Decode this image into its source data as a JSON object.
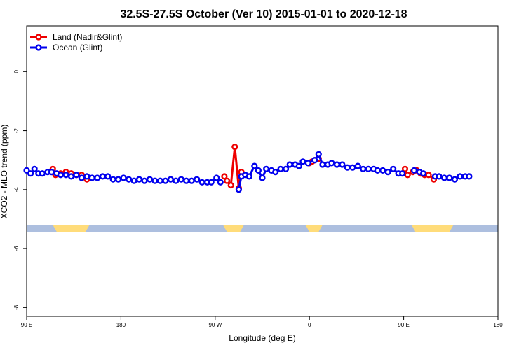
{
  "chart_data": {
    "type": "line",
    "title": "32.5S-27.5S October (Ver 10)   2015-01-01 to 2020-12-18",
    "xlabel": "Longitude (deg E)",
    "ylabel": "XCO2 - MLO trend (ppm)",
    "xlim": [
      90,
      450
    ],
    "ylim": [
      -8.3,
      1.55
    ],
    "x_ticks": [
      {
        "value": 90,
        "label": "90 E"
      },
      {
        "value": 162,
        "label": "180"
      },
      {
        "value": 234,
        "label": "90 W"
      },
      {
        "value": 306,
        "label": "0"
      },
      {
        "value": 378,
        "label": "90 E"
      },
      {
        "value": 450,
        "label": "180"
      }
    ],
    "y_ticks": [
      {
        "value": 0,
        "label": "0"
      },
      {
        "value": -2,
        "label": "-2"
      },
      {
        "value": -4,
        "label": "-4"
      },
      {
        "value": -6,
        "label": "-6"
      },
      {
        "value": -8,
        "label": "-8"
      }
    ],
    "legend": {
      "position": "top-left",
      "entries": [
        {
          "name": "Land (Nadir&Glint)",
          "color": "#ee0000"
        },
        {
          "name": "Ocean (Glint)",
          "color": "#0000ee"
        }
      ]
    },
    "series": [
      {
        "name": "Land (Nadir&Glint)",
        "color": "#ee0000",
        "segments": [
          [
            [
              110,
              -3.3
            ],
            [
              112,
              -3.5
            ],
            [
              116,
              -3.45
            ],
            [
              120,
              -3.4
            ],
            [
              124,
              -3.45
            ],
            [
              128,
              -3.5
            ],
            [
              132,
              -3.5
            ],
            [
              136,
              -3.65
            ]
          ],
          [
            [
              241,
              -3.55
            ],
            [
              243,
              -3.7
            ],
            [
              246,
              -3.85
            ],
            [
              249,
              -2.55
            ],
            [
              252,
              -3.95
            ],
            [
              254,
              -3.4
            ]
          ],
          [
            [
              306,
              -3.1
            ],
            [
              308,
              -3.05
            ],
            [
              310,
              -3.0
            ],
            [
              313,
              -2.95
            ]
          ],
          [
            [
              379,
              -3.3
            ],
            [
              381,
              -3.5
            ],
            [
              385,
              -3.4
            ],
            [
              388,
              -3.35
            ],
            [
              391,
              -3.45
            ],
            [
              394,
              -3.5
            ],
            [
              397,
              -3.5
            ],
            [
              401,
              -3.65
            ]
          ]
        ]
      },
      {
        "name": "Ocean (Glint)",
        "color": "#0000ee",
        "segments": [
          [
            [
              90,
              -3.35
            ],
            [
              93,
              -3.45
            ],
            [
              96,
              -3.3
            ],
            [
              99,
              -3.45
            ],
            [
              102,
              -3.45
            ],
            [
              106,
              -3.4
            ],
            [
              109,
              -3.4
            ],
            [
              113,
              -3.45
            ],
            [
              116,
              -3.5
            ],
            [
              120,
              -3.5
            ],
            [
              124,
              -3.55
            ],
            [
              128,
              -3.5
            ],
            [
              132,
              -3.6
            ],
            [
              136,
              -3.55
            ],
            [
              140,
              -3.6
            ],
            [
              144,
              -3.6
            ],
            [
              148,
              -3.55
            ],
            [
              152,
              -3.55
            ],
            [
              156,
              -3.65
            ],
            [
              160,
              -3.65
            ],
            [
              164,
              -3.6
            ],
            [
              168,
              -3.65
            ],
            [
              172,
              -3.7
            ],
            [
              176,
              -3.65
            ],
            [
              180,
              -3.7
            ],
            [
              184,
              -3.65
            ],
            [
              188,
              -3.7
            ],
            [
              192,
              -3.7
            ],
            [
              196,
              -3.7
            ],
            [
              200,
              -3.65
            ],
            [
              204,
              -3.7
            ],
            [
              208,
              -3.65
            ],
            [
              212,
              -3.7
            ],
            [
              216,
              -3.7
            ],
            [
              220,
              -3.65
            ],
            [
              224,
              -3.75
            ],
            [
              228,
              -3.75
            ],
            [
              231,
              -3.75
            ],
            [
              235,
              -3.6
            ],
            [
              238,
              -3.75
            ]
          ],
          [
            [
              252,
              -4.0
            ],
            [
              254,
              -3.55
            ],
            [
              257,
              -3.5
            ],
            [
              260,
              -3.55
            ],
            [
              264,
              -3.2
            ],
            [
              267,
              -3.35
            ],
            [
              270,
              -3.6
            ],
            [
              273,
              -3.3
            ],
            [
              277,
              -3.35
            ],
            [
              280,
              -3.4
            ],
            [
              284,
              -3.3
            ],
            [
              288,
              -3.3
            ],
            [
              291,
              -3.15
            ],
            [
              295,
              -3.15
            ],
            [
              298,
              -3.2
            ],
            [
              301,
              -3.05
            ],
            [
              305,
              -3.1
            ],
            [
              310,
              -3.0
            ],
            [
              313,
              -2.8
            ],
            [
              316,
              -3.15
            ],
            [
              320,
              -3.15
            ],
            [
              323,
              -3.1
            ],
            [
              327,
              -3.15
            ],
            [
              331,
              -3.15
            ],
            [
              335,
              -3.25
            ],
            [
              339,
              -3.25
            ],
            [
              343,
              -3.2
            ],
            [
              347,
              -3.3
            ],
            [
              351,
              -3.3
            ],
            [
              355,
              -3.3
            ],
            [
              358,
              -3.35
            ],
            [
              362,
              -3.35
            ],
            [
              366,
              -3.4
            ],
            [
              370,
              -3.3
            ],
            [
              374,
              -3.45
            ],
            [
              377,
              -3.45
            ]
          ],
          [
            [
              386,
              -3.35
            ],
            [
              390,
              -3.4
            ],
            [
              393,
              -3.45
            ]
          ],
          [
            [
              402,
              -3.55
            ],
            [
              405,
              -3.55
            ],
            [
              409,
              -3.6
            ],
            [
              413,
              -3.6
            ],
            [
              417,
              -3.65
            ],
            [
              421,
              -3.55
            ],
            [
              425,
              -3.55
            ],
            [
              428,
              -3.55
            ]
          ]
        ]
      }
    ],
    "background_band": {
      "y_range": [
        -5.2,
        -5.45
      ],
      "ocean_color": "#adbfdf",
      "land_color": "#ffdc7a",
      "land_x_ranges": [
        [
          110,
          138
        ],
        [
          240,
          256
        ],
        [
          303,
          316
        ],
        [
          384,
          416
        ]
      ]
    }
  }
}
